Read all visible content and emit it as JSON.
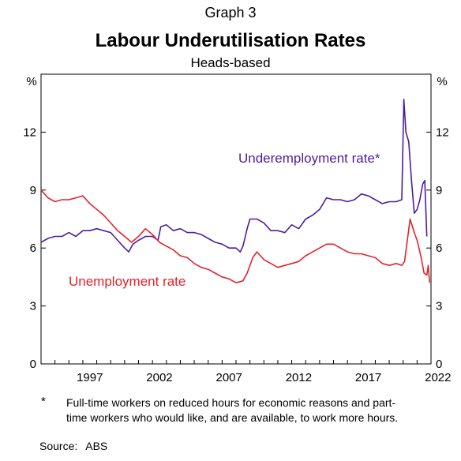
{
  "graph_label": "Graph 3",
  "title": "Labour Underutilisation Rates",
  "subtitle": "Heads-based",
  "footnote": {
    "marker": "*",
    "text": "Full-time workers on reduced hours for economic reasons and part-time workers who would like, and are available, to work more hours."
  },
  "source": {
    "label": "Source:",
    "value": "ABS"
  },
  "chart_data": {
    "type": "line",
    "title": "Labour Underutilisation Rates",
    "subtitle": "Heads-based",
    "ylabel_left": "%",
    "ylabel_right": "%",
    "xlim": [
      1994.0,
      2022.0
    ],
    "ylim": [
      0,
      15
    ],
    "x_ticks": [
      "1997",
      "2002",
      "2007",
      "2012",
      "2017",
      "2022"
    ],
    "y_ticks": [
      "0",
      "3",
      "6",
      "9",
      "12"
    ],
    "grid": false,
    "legend": "inline labels",
    "series": [
      {
        "name": "Underemployment rate*",
        "color": "#4b1e9e",
        "points": [
          [
            1994.0,
            6.3
          ],
          [
            1994.5,
            6.5
          ],
          [
            1995.0,
            6.6
          ],
          [
            1995.5,
            6.6
          ],
          [
            1996.0,
            6.8
          ],
          [
            1996.5,
            6.6
          ],
          [
            1997.0,
            6.9
          ],
          [
            1997.5,
            6.9
          ],
          [
            1998.0,
            7.0
          ],
          [
            1998.5,
            6.9
          ],
          [
            1999.0,
            6.8
          ],
          [
            1999.5,
            6.4
          ],
          [
            2000.0,
            6.0
          ],
          [
            2000.3,
            5.8
          ],
          [
            2000.6,
            6.2
          ],
          [
            2001.0,
            6.4
          ],
          [
            2001.5,
            6.6
          ],
          [
            2002.0,
            6.6
          ],
          [
            2002.4,
            6.4
          ],
          [
            2002.6,
            7.1
          ],
          [
            2003.0,
            7.2
          ],
          [
            2003.5,
            6.9
          ],
          [
            2004.0,
            7.0
          ],
          [
            2004.5,
            6.8
          ],
          [
            2005.0,
            6.8
          ],
          [
            2005.5,
            6.7
          ],
          [
            2006.0,
            6.5
          ],
          [
            2006.5,
            6.3
          ],
          [
            2007.0,
            6.2
          ],
          [
            2007.5,
            6.0
          ],
          [
            2008.0,
            6.0
          ],
          [
            2008.3,
            5.8
          ],
          [
            2008.5,
            6.1
          ],
          [
            2008.8,
            7.0
          ],
          [
            2009.0,
            7.5
          ],
          [
            2009.5,
            7.5
          ],
          [
            2010.0,
            7.3
          ],
          [
            2010.5,
            6.9
          ],
          [
            2011.0,
            6.9
          ],
          [
            2011.5,
            6.8
          ],
          [
            2012.0,
            7.2
          ],
          [
            2012.5,
            7.0
          ],
          [
            2013.0,
            7.5
          ],
          [
            2013.5,
            7.7
          ],
          [
            2014.0,
            8.0
          ],
          [
            2014.5,
            8.6
          ],
          [
            2015.0,
            8.5
          ],
          [
            2015.5,
            8.5
          ],
          [
            2016.0,
            8.4
          ],
          [
            2016.5,
            8.5
          ],
          [
            2017.0,
            8.8
          ],
          [
            2017.5,
            8.7
          ],
          [
            2018.0,
            8.5
          ],
          [
            2018.5,
            8.3
          ],
          [
            2019.0,
            8.4
          ],
          [
            2019.5,
            8.4
          ],
          [
            2019.9,
            8.5
          ],
          [
            2020.05,
            13.7
          ],
          [
            2020.2,
            12.0
          ],
          [
            2020.4,
            11.5
          ],
          [
            2020.6,
            9.5
          ],
          [
            2020.8,
            7.8
          ],
          [
            2021.0,
            8.0
          ],
          [
            2021.2,
            8.5
          ],
          [
            2021.4,
            9.3
          ],
          [
            2021.55,
            9.5
          ],
          [
            2021.7,
            6.6
          ]
        ]
      },
      {
        "name": "Unemployment rate",
        "color": "#e3232c",
        "points": [
          [
            1994.0,
            9.0
          ],
          [
            1994.5,
            8.6
          ],
          [
            1995.0,
            8.4
          ],
          [
            1995.5,
            8.5
          ],
          [
            1996.0,
            8.5
          ],
          [
            1996.5,
            8.6
          ],
          [
            1997.0,
            8.7
          ],
          [
            1997.5,
            8.3
          ],
          [
            1998.0,
            8.0
          ],
          [
            1998.5,
            7.7
          ],
          [
            1999.0,
            7.3
          ],
          [
            1999.5,
            6.9
          ],
          [
            2000.0,
            6.6
          ],
          [
            2000.5,
            6.3
          ],
          [
            2001.0,
            6.6
          ],
          [
            2001.5,
            7.0
          ],
          [
            2002.0,
            6.7
          ],
          [
            2002.5,
            6.3
          ],
          [
            2003.0,
            6.1
          ],
          [
            2003.5,
            5.9
          ],
          [
            2004.0,
            5.6
          ],
          [
            2004.5,
            5.5
          ],
          [
            2005.0,
            5.2
          ],
          [
            2005.5,
            5.0
          ],
          [
            2006.0,
            4.9
          ],
          [
            2006.5,
            4.7
          ],
          [
            2007.0,
            4.5
          ],
          [
            2007.5,
            4.4
          ],
          [
            2008.0,
            4.2
          ],
          [
            2008.5,
            4.3
          ],
          [
            2008.8,
            4.7
          ],
          [
            2009.2,
            5.5
          ],
          [
            2009.5,
            5.8
          ],
          [
            2010.0,
            5.4
          ],
          [
            2010.5,
            5.2
          ],
          [
            2011.0,
            5.0
          ],
          [
            2011.5,
            5.1
          ],
          [
            2012.0,
            5.2
          ],
          [
            2012.5,
            5.3
          ],
          [
            2013.0,
            5.6
          ],
          [
            2013.5,
            5.8
          ],
          [
            2014.0,
            6.0
          ],
          [
            2014.5,
            6.2
          ],
          [
            2015.0,
            6.2
          ],
          [
            2015.5,
            6.0
          ],
          [
            2016.0,
            5.8
          ],
          [
            2016.5,
            5.7
          ],
          [
            2017.0,
            5.7
          ],
          [
            2017.5,
            5.6
          ],
          [
            2018.0,
            5.5
          ],
          [
            2018.5,
            5.2
          ],
          [
            2019.0,
            5.1
          ],
          [
            2019.5,
            5.2
          ],
          [
            2019.9,
            5.1
          ],
          [
            2020.1,
            5.3
          ],
          [
            2020.3,
            6.4
          ],
          [
            2020.5,
            7.5
          ],
          [
            2020.8,
            6.8
          ],
          [
            2021.0,
            6.4
          ],
          [
            2021.3,
            5.5
          ],
          [
            2021.5,
            4.7
          ],
          [
            2021.7,
            4.6
          ],
          [
            2021.8,
            5.1
          ],
          [
            2021.9,
            4.2
          ]
        ]
      }
    ],
    "annotations": [
      {
        "text": "Underemployment rate*",
        "series": "Underemployment rate*"
      },
      {
        "text": "Unemployment rate",
        "series": "Unemployment rate"
      }
    ]
  }
}
